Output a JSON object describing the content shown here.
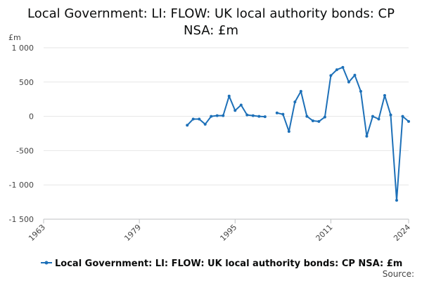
{
  "chart_data": {
    "type": "line",
    "title": "Local Government: LI: FLOW: UK local authority bonds: CP NSA: £m",
    "title_lines": [
      "Local Government: LI: FLOW: UK local authority bonds: CP",
      "NSA: £m"
    ],
    "ylabel": "£m",
    "xlabel": "",
    "xlim": [
      1963,
      2024
    ],
    "ylim": [
      -1500,
      1000
    ],
    "x_ticks": [
      1963,
      1979,
      1995,
      2011,
      2024
    ],
    "x_tick_labels": [
      "1963",
      "1979",
      "1995",
      "2011",
      "2024"
    ],
    "y_ticks": [
      1000,
      500,
      0,
      -500,
      -1000,
      -1500
    ],
    "y_tick_labels": [
      "1 000",
      "500",
      "0",
      "-500",
      "-1 000",
      "-1 500"
    ],
    "grid": "horizontal",
    "legend_position": "bottom",
    "series": [
      {
        "name": "Local Government: LI: FLOW: UK local authority bonds: CP NSA: £m",
        "color": "#1d70b8",
        "segments": [
          [
            [
              1987,
              -130
            ],
            [
              1988,
              -40
            ],
            [
              1989,
              -40
            ],
            [
              1990,
              -115
            ],
            [
              1991,
              0
            ],
            [
              1992,
              10
            ],
            [
              1993,
              10
            ],
            [
              1994,
              295
            ],
            [
              1995,
              85
            ],
            [
              1996,
              165
            ],
            [
              1997,
              20
            ],
            [
              1998,
              10
            ],
            [
              1999,
              0
            ],
            [
              2000,
              -5
            ]
          ],
          [
            [
              2002,
              50
            ],
            [
              2003,
              30
            ],
            [
              2004,
              -220
            ],
            [
              2005,
              210
            ],
            [
              2006,
              365
            ],
            [
              2007,
              0
            ],
            [
              2008,
              -65
            ],
            [
              2009,
              -75
            ],
            [
              2010,
              -10
            ],
            [
              2011,
              595
            ],
            [
              2012,
              680
            ],
            [
              2013,
              715
            ],
            [
              2014,
              500
            ],
            [
              2015,
              600
            ],
            [
              2016,
              365
            ],
            [
              2017,
              -290
            ],
            [
              2018,
              0
            ],
            [
              2019,
              -40
            ],
            [
              2020,
              305
            ],
            [
              2021,
              20
            ],
            [
              2022,
              -1225
            ],
            [
              2023,
              0
            ],
            [
              2024,
              -75
            ]
          ]
        ]
      }
    ]
  },
  "source_label": "Source:"
}
